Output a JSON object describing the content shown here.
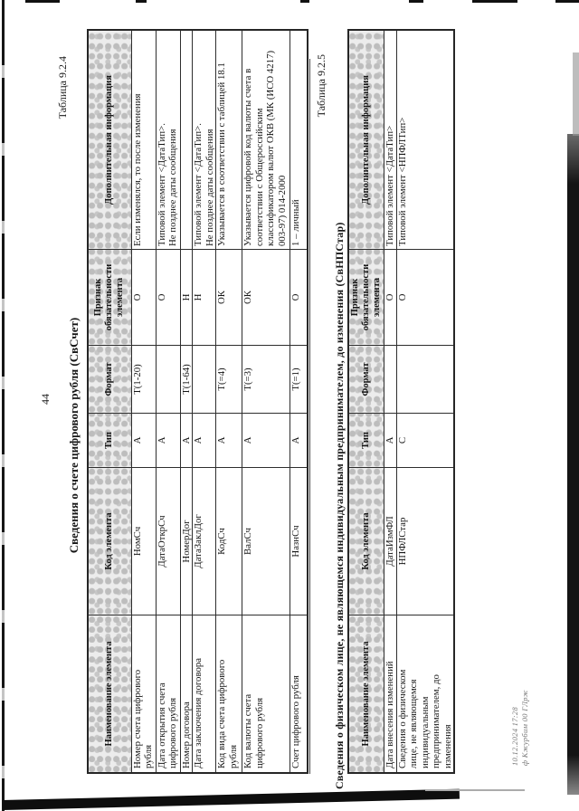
{
  "page_number": "44",
  "tables": [
    {
      "caption": "Таблица 9.2.4",
      "title": "Сведения о счете цифрового рубля (СвСчет)",
      "headers": [
        "Наименование элемента",
        "Код элемента",
        "Тип",
        "Формат",
        "Признак обязательности элемента",
        "Дополнительная информация"
      ],
      "rows": [
        [
          "Номер счета цифрового\nрубля",
          "НомСч",
          "А",
          "Т(1-20)",
          "О",
          "Если изменялся, то после изменения"
        ],
        [
          "Дата открытия счета\nцифрового рубля",
          "ДатаОткрСч",
          "А",
          "",
          "О",
          "Типовой элемент <ДатаТип>.\nНе позднее даты сообщения"
        ],
        [
          "Номер договора",
          "НомерДог",
          "А",
          "Т(1-64)",
          "Н",
          ""
        ],
        [
          "Дата заключения договора",
          "ДатаЗаклДог",
          "А",
          "",
          "Н",
          "Типовой элемент <ДатаТип>.\nНе позднее даты сообщения"
        ],
        [
          "Код вида счета цифрового\nрубля",
          "КодСч",
          "А",
          "Т(=4)",
          "ОК",
          "Указывается в соответствии с таблицей 18.1"
        ],
        [
          "Код валюты счета\nцифрового рубля",
          "ВалСч",
          "А",
          "Т(=3)",
          "ОК",
          "Указывается цифровой код валюты счета в\nсоответствии с Общероссийским\nклассификатором валют ОКВ (МК (ИСО 4217)\n003-97) 014-2000"
        ],
        [
          "Счет цифрового рубля",
          "НазнСч",
          "А",
          "Т(=1)",
          "О",
          "1 – личный"
        ]
      ]
    },
    {
      "caption": "Таблица 9.2.5",
      "title": "Сведения о физическом лице, не являющемся индивидуальным предпринимателем, до изменения (СвНПСтар)",
      "headers": [
        "Наименование элемента",
        "Код элемента",
        "Тип",
        "Формат",
        "Признак обязательности элемента",
        "Дополнительная информация"
      ],
      "rows": [
        [
          "Дата внесения изменений",
          "ДатаИзмФЛ",
          "А",
          "",
          "О",
          "Типовой элемент <ДатаТип>"
        ],
        [
          "Сведения о физическом\nлице, не являющемся\nиндивидуальным\nпредпринимателем, до\nизменения",
          "НПФЛСтар",
          "С",
          "",
          "О",
          "Типовой элемент <НПФЛТип>"
        ]
      ]
    }
  ],
  "stamp": {
    "line1": "10.12.2024 17:28",
    "line2": "ф Кжурбим 00 ГЛрж"
  }
}
